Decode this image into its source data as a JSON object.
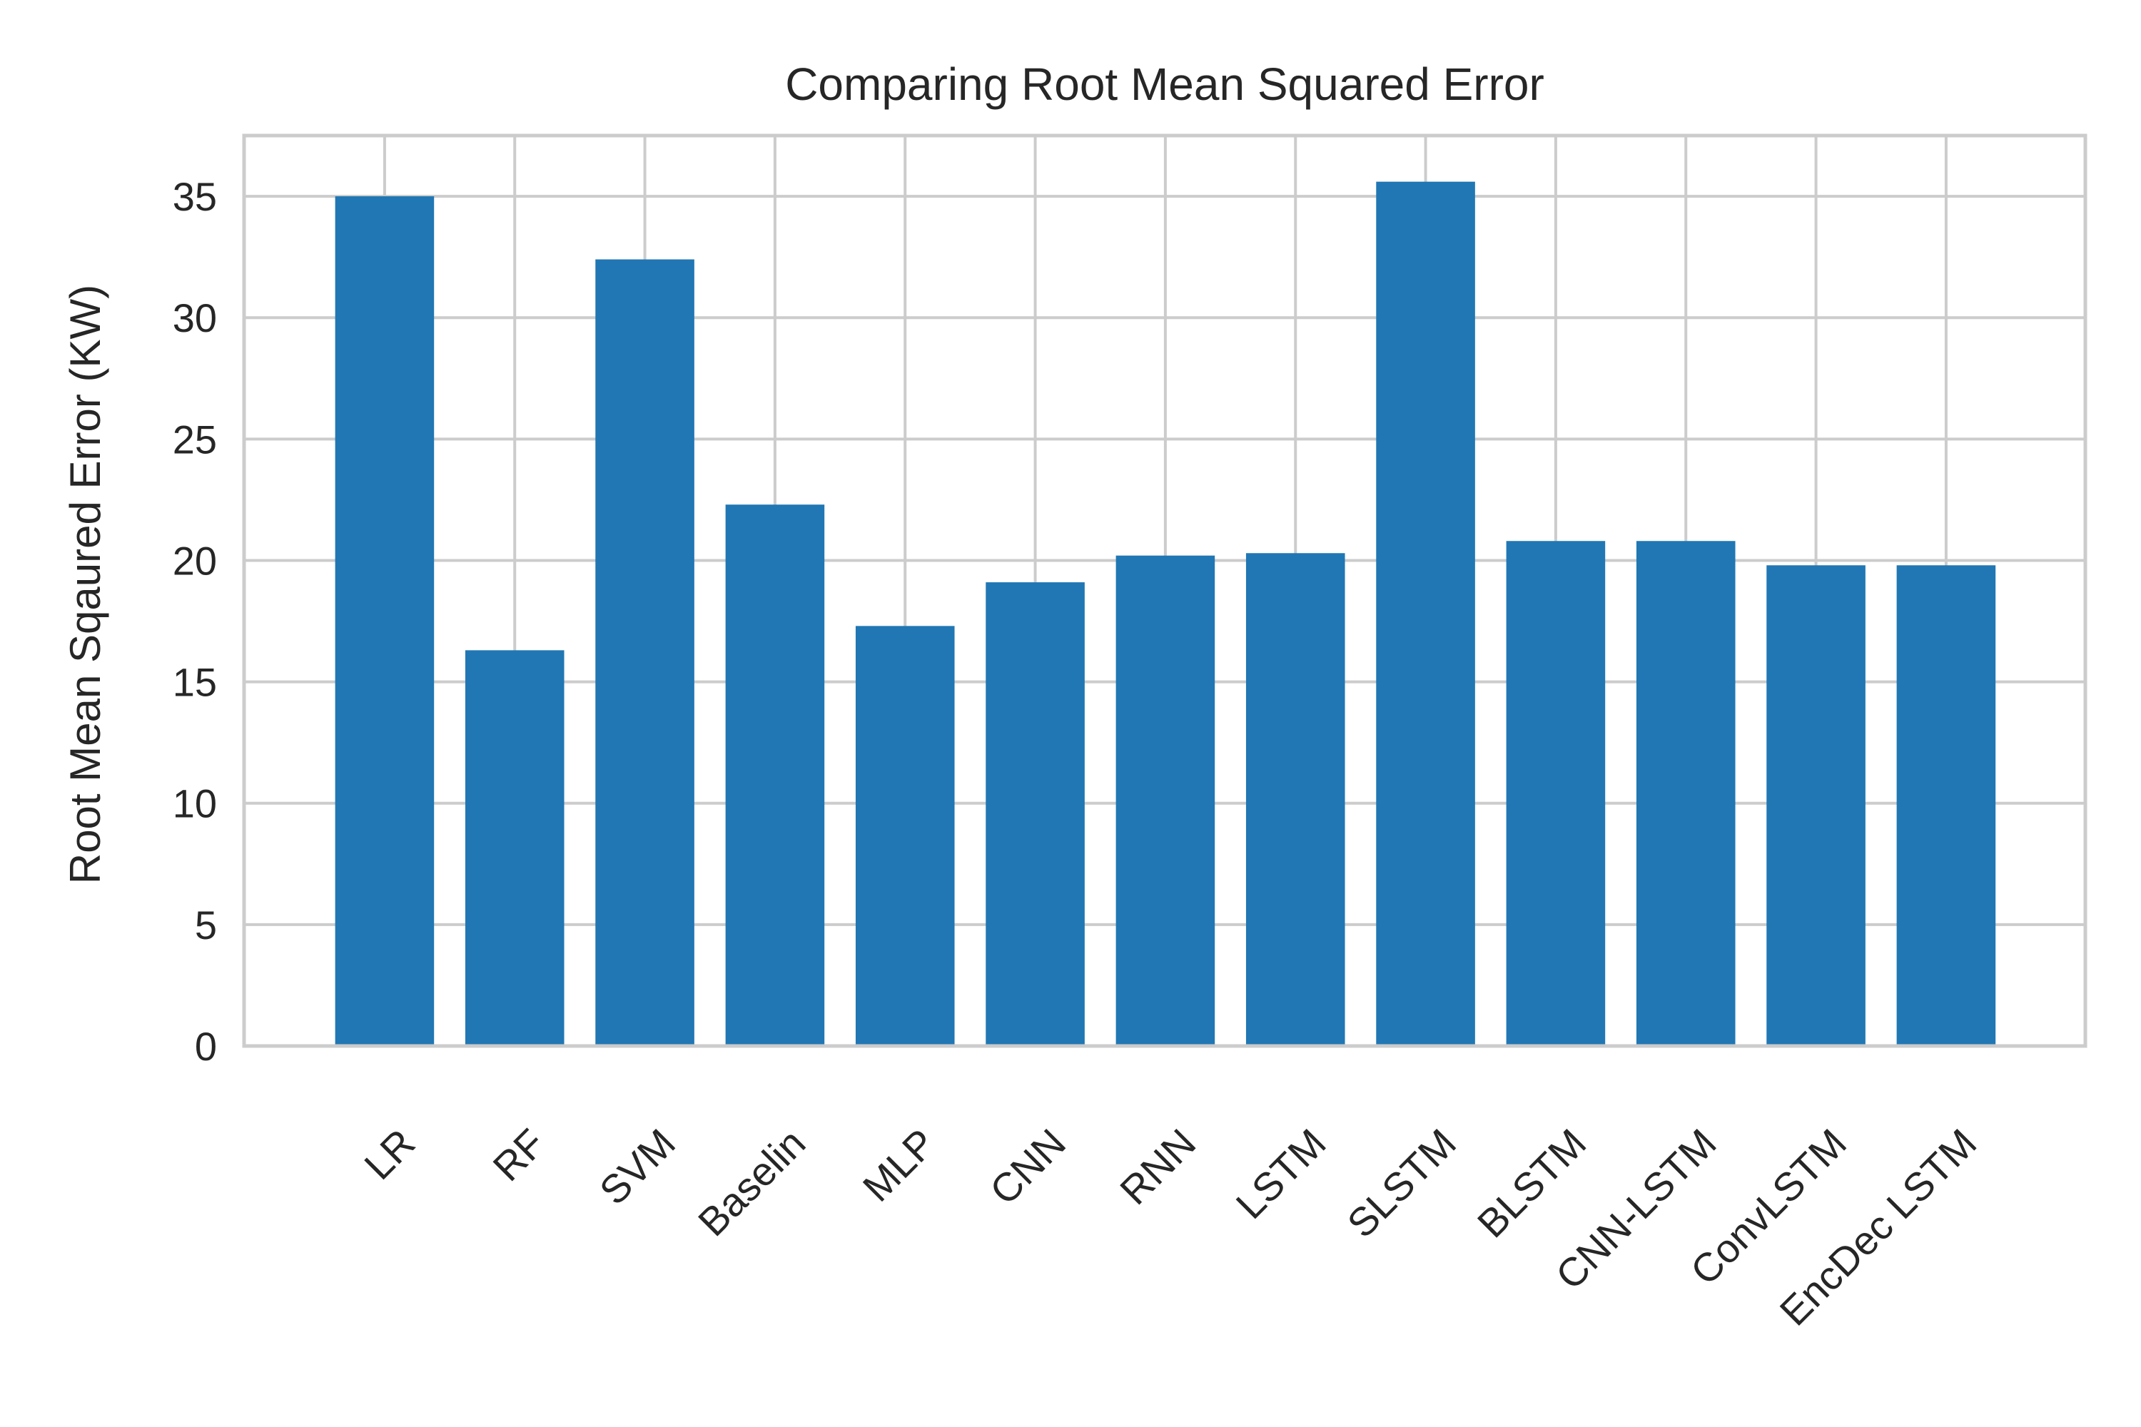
{
  "chart_data": {
    "type": "bar",
    "title": "Comparing Root Mean Squared Error",
    "xlabel": "",
    "ylabel": "Root Mean Sqaured Error (KW)",
    "categories": [
      "LR",
      "RF",
      "SVM",
      "Baselin",
      "MLP",
      "CNN",
      "RNN",
      "LSTM",
      "SLSTM",
      "BLSTM",
      "CNN-LSTM",
      "ConvLSTM",
      "EncDec LSTM"
    ],
    "values": [
      35.0,
      16.3,
      32.4,
      22.3,
      17.3,
      19.1,
      20.2,
      20.3,
      35.6,
      20.8,
      20.8,
      19.8,
      19.8
    ],
    "ylim": [
      0,
      37.5
    ],
    "yticks": [
      0,
      5,
      10,
      15,
      20,
      25,
      30,
      35
    ],
    "grid": true,
    "bar_color": "#2077b4"
  }
}
